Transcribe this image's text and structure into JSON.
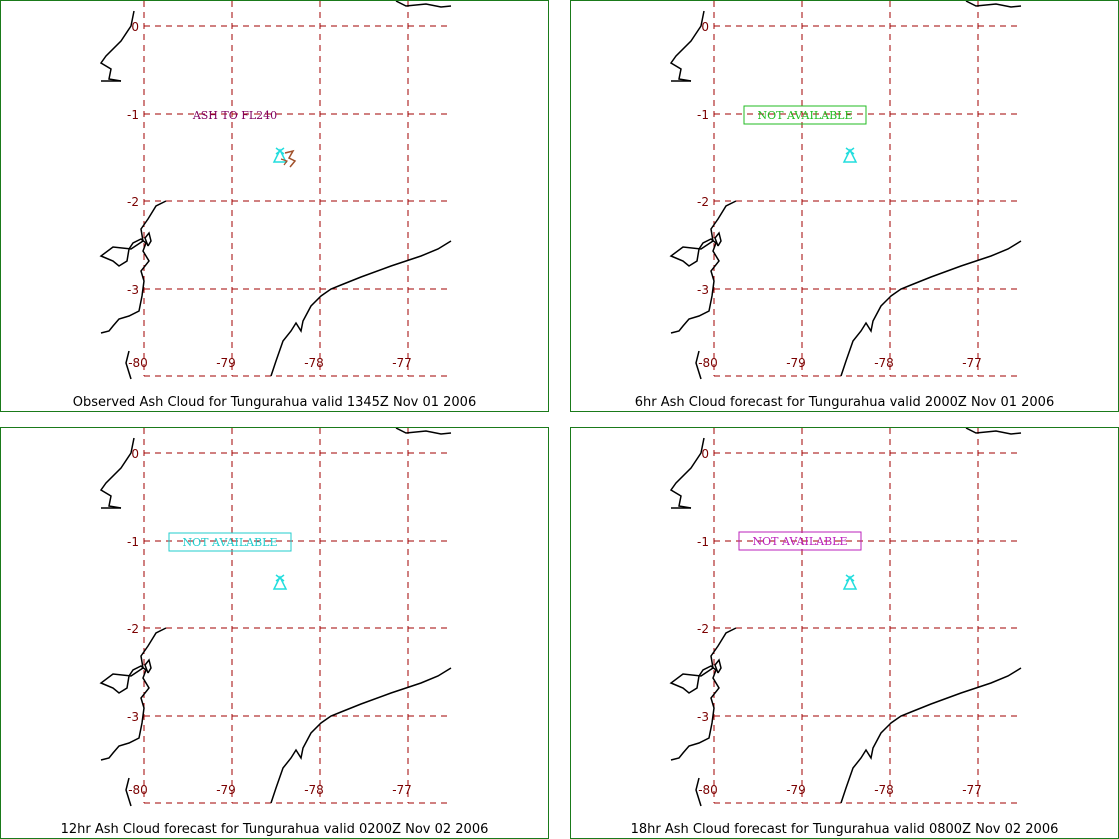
{
  "panels": [
    {
      "caption": "Observed Ash Cloud for Tungurahua valid 1345Z Nov 01 2006",
      "annotation": "ASH TO FL240",
      "annotation_boxed": false,
      "annotation_color": "#800060",
      "has_ash_symbol": true
    },
    {
      "caption": "6hr Ash Cloud forecast for Tungurahua valid 2000Z Nov 01 2006",
      "annotation": "NOT AVAILABLE",
      "annotation_boxed": true,
      "annotation_color": "#22bb22",
      "has_ash_symbol": false
    },
    {
      "caption": "12hr Ash Cloud forecast for Tungurahua valid 0200Z Nov 02 2006",
      "annotation": "NOT AVAILABLE",
      "annotation_boxed": true,
      "annotation_color": "#22cccc",
      "has_ash_symbol": false
    },
    {
      "caption": "18hr Ash Cloud forecast for Tungurahua valid 0800Z Nov 02 2006",
      "annotation": "NOT AVAILABLE",
      "annotation_boxed": true,
      "annotation_color": "#bb22bb",
      "has_ash_symbol": false
    }
  ],
  "map": {
    "lat_ticks": [
      "0",
      "-1",
      "-2",
      "-3"
    ],
    "lon_ticks": [
      "-80",
      "-79",
      "-78",
      "-77"
    ],
    "grid_color": "#a00000",
    "coast_color": "#000000",
    "volcano_color": "#22dddd",
    "volcano_icon": "volcano-triangle-icon"
  }
}
